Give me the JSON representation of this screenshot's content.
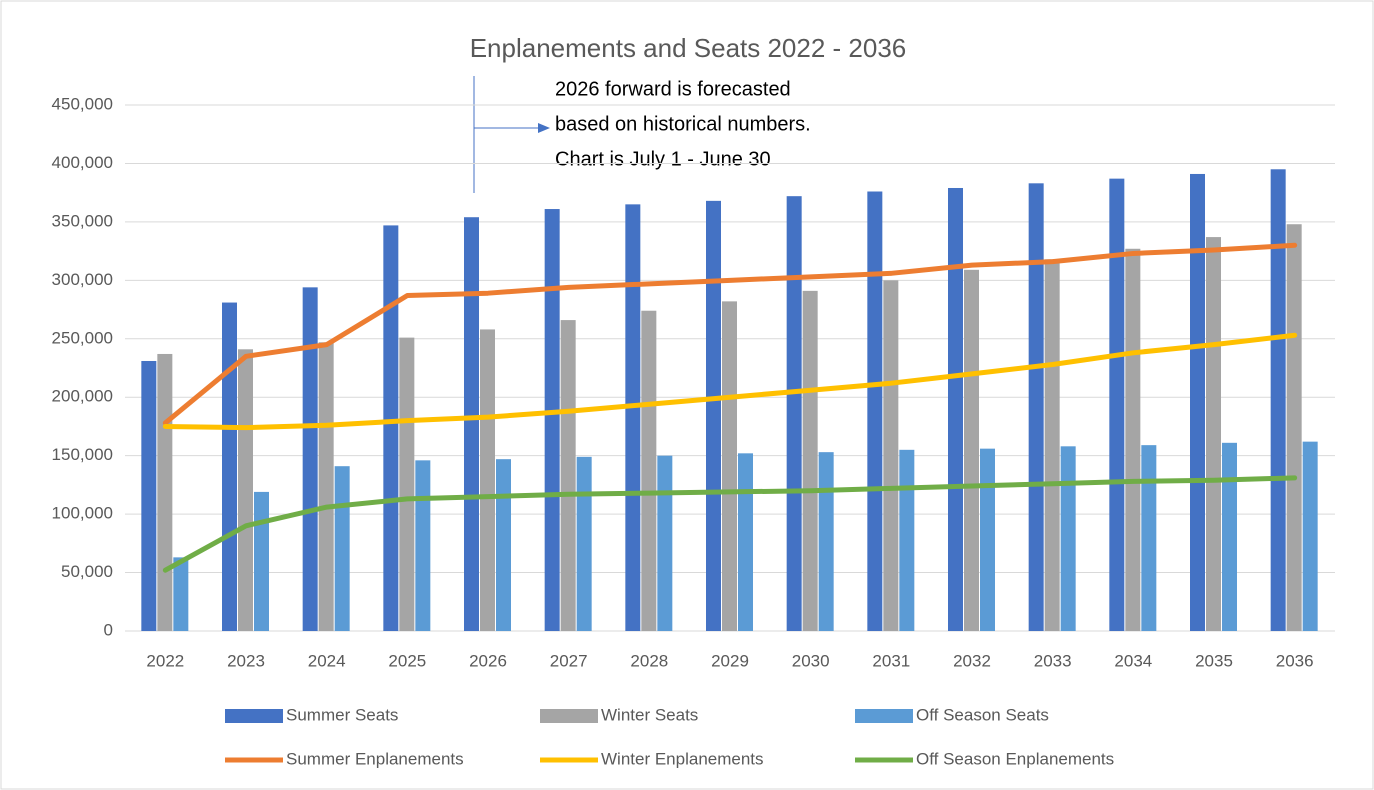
{
  "chart_data": {
    "type": "combo",
    "title": "Enplanements and Seats 2022 - 2036",
    "annotation": [
      "2026 forward is forecasted",
      "based on historical numbers.",
      "Chart is July 1 - June 30"
    ],
    "categories": [
      "2022",
      "2023",
      "2024",
      "2025",
      "2026",
      "2027",
      "2028",
      "2029",
      "2030",
      "2031",
      "2032",
      "2033",
      "2034",
      "2035",
      "2036"
    ],
    "series": [
      {
        "name": "Summer Seats",
        "type": "bar",
        "color": "#4472c4",
        "values": [
          231000,
          281000,
          294000,
          347000,
          354000,
          361000,
          365000,
          368000,
          372000,
          376000,
          379000,
          383000,
          387000,
          391000,
          395000
        ]
      },
      {
        "name": "Winter Seats",
        "type": "bar",
        "color": "#a5a5a5",
        "values": [
          237000,
          241000,
          247000,
          251000,
          258000,
          266000,
          274000,
          282000,
          291000,
          300000,
          309000,
          318000,
          327000,
          337000,
          348000
        ]
      },
      {
        "name": "Off Season Seats",
        "type": "bar",
        "color": "#5b9bd5",
        "values": [
          63000,
          119000,
          141000,
          146000,
          147000,
          149000,
          150000,
          152000,
          153000,
          155000,
          156000,
          158000,
          159000,
          161000,
          162000
        ]
      },
      {
        "name": "Summer Enplanements",
        "type": "line",
        "color": "#ed7d31",
        "values": [
          178000,
          235000,
          245000,
          287000,
          289000,
          294000,
          297000,
          300000,
          303000,
          306000,
          313000,
          316000,
          323000,
          326000,
          330000
        ]
      },
      {
        "name": "Winter Enplanements",
        "type": "line",
        "color": "#ffc000",
        "values": [
          175000,
          174000,
          176000,
          180000,
          183000,
          188000,
          194000,
          200000,
          206000,
          212000,
          220000,
          228000,
          238000,
          245000,
          253000
        ]
      },
      {
        "name": "Off Season Enplanements",
        "type": "line",
        "color": "#70ad47",
        "values": [
          52000,
          90000,
          106000,
          113000,
          115000,
          117000,
          118000,
          119000,
          120000,
          122000,
          124000,
          126000,
          128000,
          129000,
          131000
        ]
      }
    ],
    "ylim": [
      0,
      450000
    ],
    "yticks": [
      0,
      {
        "value": 50000,
        "label": "50,000"
      },
      {
        "value": 100000,
        "label": "100,000"
      },
      {
        "value": 150000,
        "label": "150,000"
      },
      {
        "value": 200000,
        "label": "200,000"
      },
      {
        "value": 250000,
        "label": "250,000"
      },
      {
        "value": 300000,
        "label": "300,000"
      },
      {
        "value": 350000,
        "label": "350,000"
      },
      {
        "value": 400000,
        "label": "400,000"
      },
      {
        "value": 450000,
        "label": "450,000"
      }
    ],
    "grid": true,
    "legend": "bottom"
  }
}
